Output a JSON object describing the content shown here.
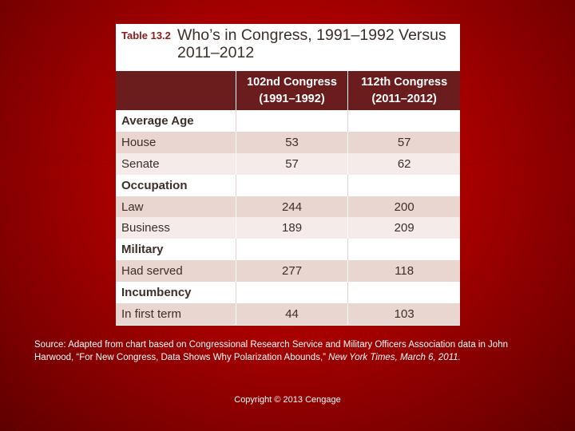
{
  "colors": {
    "background": "#a60000",
    "header_bg": "#6b1d1d",
    "row_light": "#f5ebe8",
    "row_dark": "#e9d6d1",
    "label_red": "#8b1c1c"
  },
  "table": {
    "label": "Table 13.2",
    "title": "Who’s in Congress, 1991–1992 Versus 2011–2012",
    "headers": {
      "col1_line1": "102nd Congress",
      "col1_line2": "(1991–1992)",
      "col2_line1": "112th Congress",
      "col2_line2": "(2011–2012)"
    },
    "sections": [
      {
        "title": "Average Age",
        "rows": [
          {
            "label": "House",
            "v1": "53",
            "v2": "57"
          },
          {
            "label": "Senate",
            "v1": "57",
            "v2": "62"
          }
        ]
      },
      {
        "title": "Occupation",
        "rows": [
          {
            "label": "Law",
            "v1": "244",
            "v2": "200"
          },
          {
            "label": "Business",
            "v1": "189",
            "v2": "209"
          }
        ]
      },
      {
        "title": "Military",
        "rows": [
          {
            "label": "Had served",
            "v1": "277",
            "v2": "118"
          }
        ]
      },
      {
        "title": "Incumbency",
        "rows": [
          {
            "label": "In first term",
            "v1": "44",
            "v2": "103"
          }
        ]
      }
    ]
  },
  "source": {
    "text": "Source: Adapted from chart based on Congressional Research Service and Military Officers Association data in John Harwood, “For New Congress, Data Shows Why Polarization Abounds,”",
    "publication": "New York Times, March 6, 2011."
  },
  "copyright": "Copyright © 2013 Cengage"
}
